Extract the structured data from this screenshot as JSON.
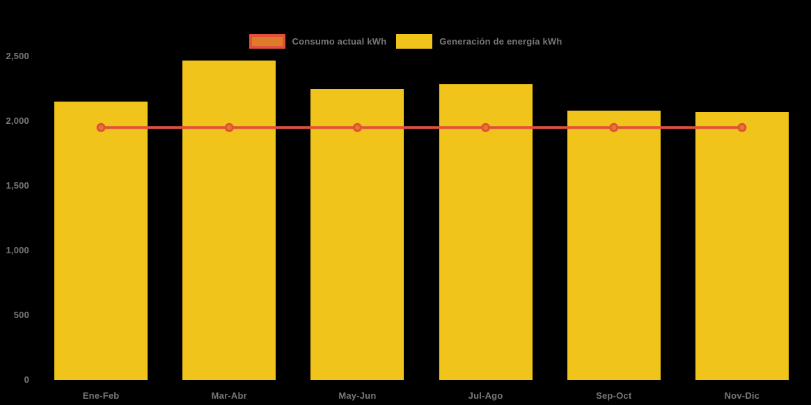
{
  "colors": {
    "background": "#000000",
    "bar_yellow": "#F0C41A",
    "line_red": "#E2503C",
    "marker_orange": "#DE7B28",
    "label_gray": "#787878"
  },
  "legend": {
    "items": [
      {
        "label": "Consumo actual kWh",
        "swatch": "orange-fill-red-border"
      },
      {
        "label": "Generación de energía kWh",
        "swatch": "yellow-fill"
      }
    ]
  },
  "chart_data": {
    "type": "bar",
    "subtype": "bar-with-line-overlay",
    "title": "",
    "xlabel": "",
    "ylabel": "",
    "categories": [
      "Ene-Feb",
      "Mar-Abr",
      "May-Jun",
      "Jul-Ago",
      "Sep-Oct",
      "Nov-Dic"
    ],
    "series": [
      {
        "name": "Consumo actual kWh",
        "type": "line",
        "color": "#E2503C",
        "marker_fill": "#DE7B28",
        "values": [
          1950,
          1950,
          1950,
          1950,
          1950,
          1950
        ]
      },
      {
        "name": "Generación de energía kWh",
        "type": "bar",
        "color": "#F0C41A",
        "values": [
          2150,
          2470,
          2250,
          2285,
          2080,
          2070
        ]
      }
    ],
    "ylim": [
      0,
      2500
    ],
    "ytick_step": 500,
    "ytick_labels": [
      "0",
      "500",
      "1,000",
      "1,500",
      "2,000",
      "2,500"
    ],
    "grid": false,
    "legend_position": "top-center"
  }
}
